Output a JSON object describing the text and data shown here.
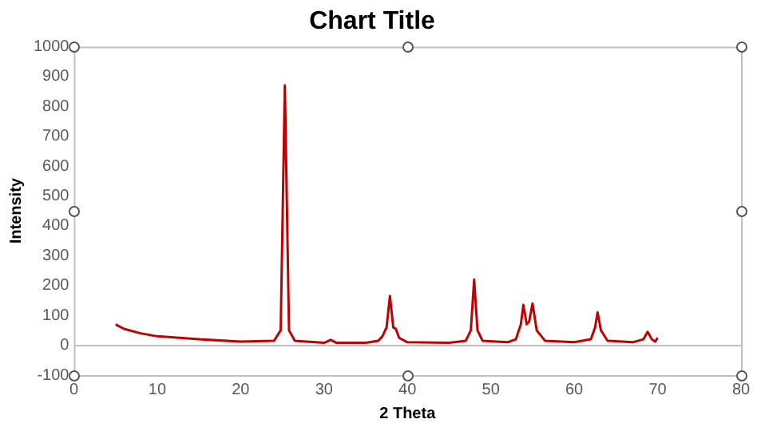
{
  "chart_data": {
    "type": "line",
    "title": "Chart Title",
    "xlabel": "2 Theta",
    "ylabel": "Intensity",
    "x": [
      5,
      6,
      8,
      10,
      15,
      20,
      24,
      24.8,
      25.3,
      25.8,
      26.5,
      30,
      30.8,
      31.5,
      35,
      36.5,
      37,
      37.5,
      37.9,
      38.3,
      38.6,
      39,
      40,
      45,
      47,
      47.6,
      48,
      48.4,
      49,
      52,
      53,
      53.6,
      53.9,
      54.3,
      54.6,
      55,
      55.5,
      56.5,
      60,
      62,
      62.5,
      62.8,
      63.2,
      64,
      67,
      68.3,
      68.8,
      69.3,
      69.7,
      70
    ],
    "series": [
      {
        "color": "#c00000",
        "values": [
          70,
          55,
          40,
          30,
          20,
          12,
          15,
          50,
          870,
          50,
          15,
          8,
          18,
          8,
          8,
          15,
          30,
          60,
          165,
          60,
          55,
          25,
          10,
          8,
          15,
          50,
          220,
          50,
          15,
          10,
          20,
          70,
          135,
          70,
          80,
          140,
          50,
          15,
          10,
          20,
          60,
          110,
          50,
          15,
          10,
          20,
          45,
          20,
          12,
          25
        ]
      }
    ],
    "xlim": [
      0,
      80
    ],
    "xticks": [
      0,
      10,
      20,
      30,
      40,
      50,
      60,
      70,
      80
    ],
    "ylim": [
      -100,
      1000
    ],
    "yticks": [
      -100,
      0,
      100,
      200,
      300,
      400,
      500,
      600,
      700,
      800,
      900,
      1000
    ],
    "legend": false,
    "marker": "none",
    "line_style": "solid"
  }
}
